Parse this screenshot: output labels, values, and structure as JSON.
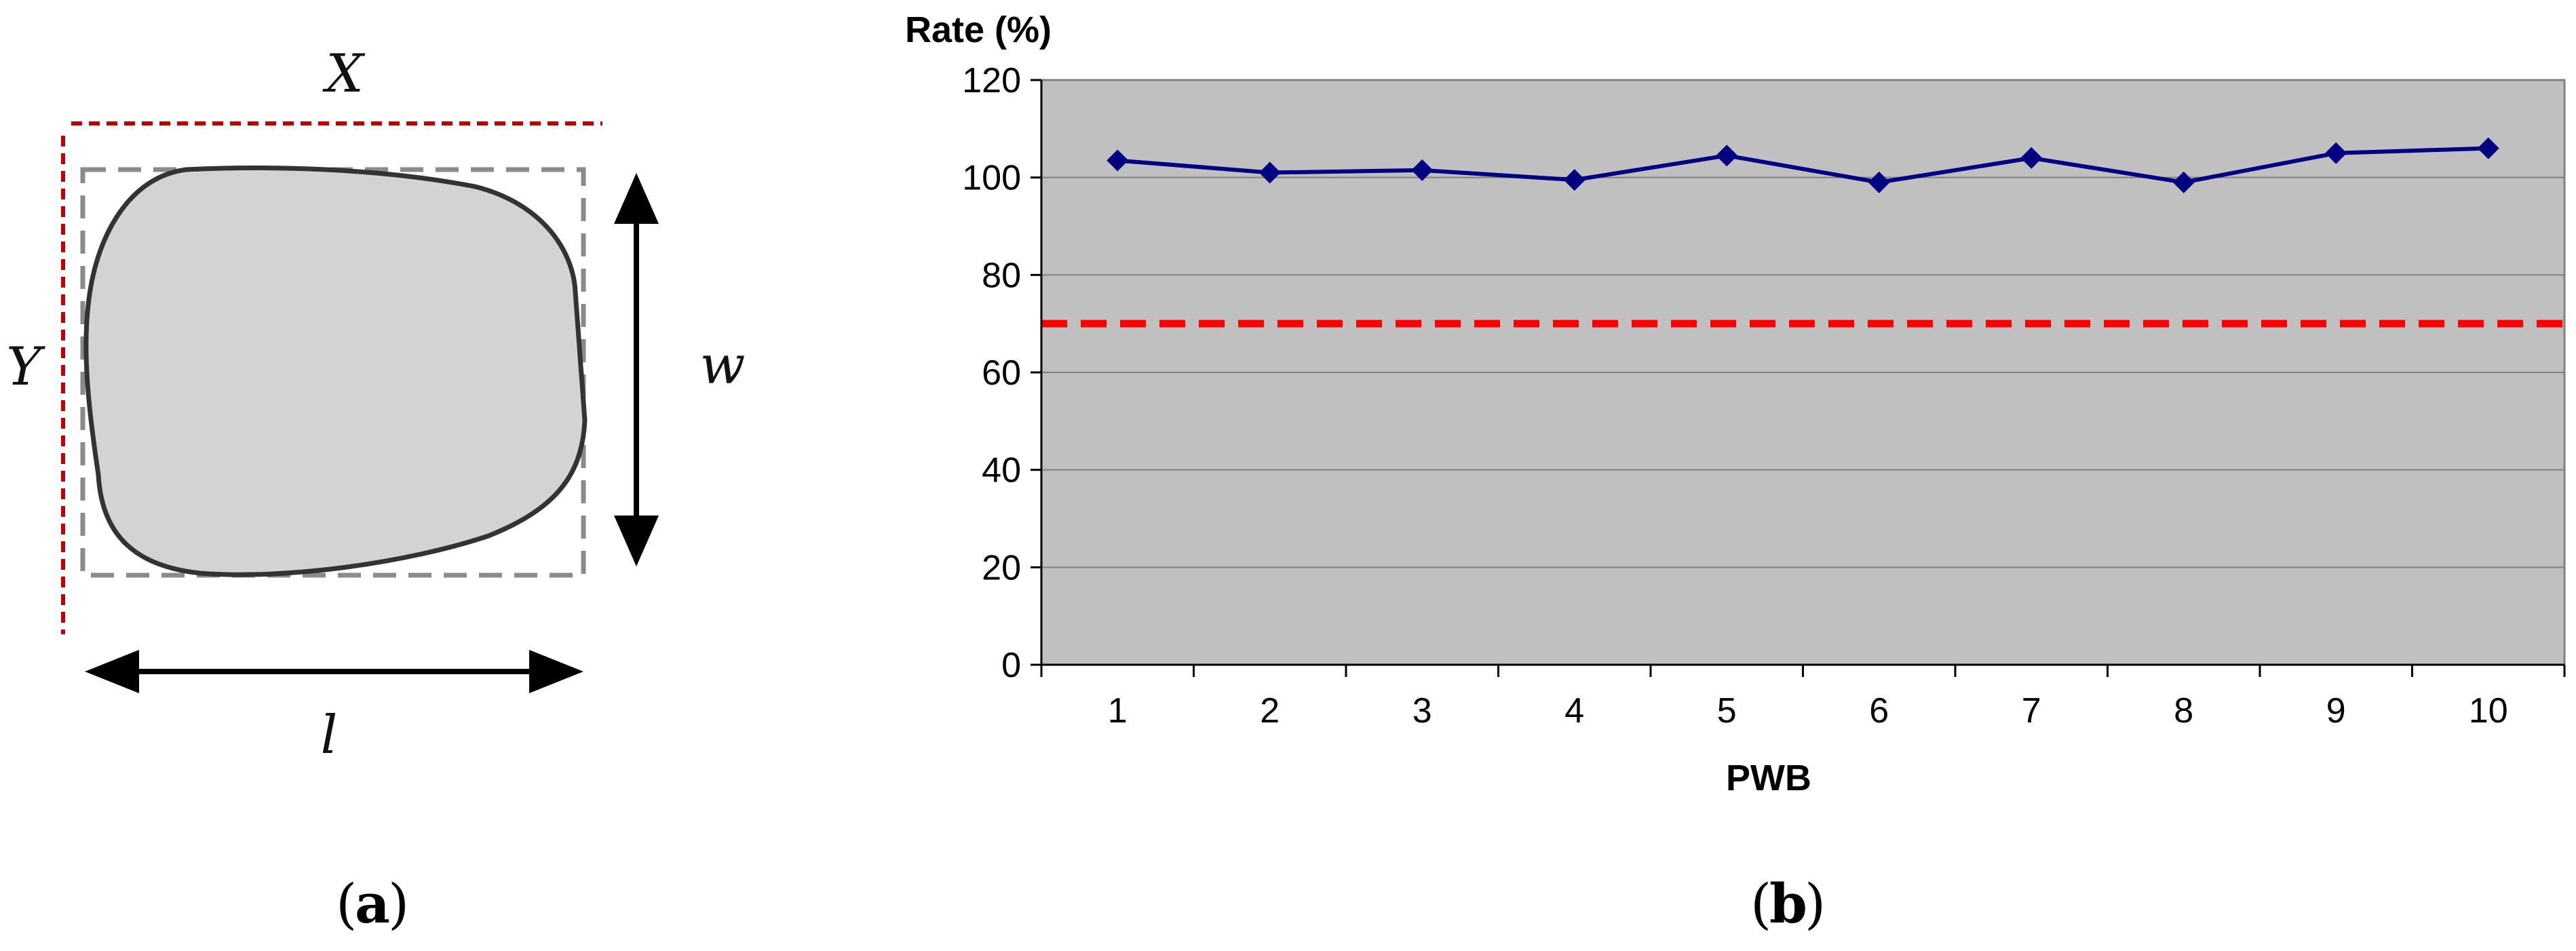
{
  "panel_a": {
    "caption_letter": "a",
    "labels": {
      "X": "X",
      "Y": "Y",
      "w": "w",
      "l": "l"
    }
  },
  "panel_b": {
    "caption_letter": "b"
  },
  "colors": {
    "plot_background": "#c0c0c0",
    "series_line": "#000080",
    "threshold_line": "#ff0000",
    "gridline": "#808080",
    "shape_fill": "#d3d3d3",
    "frame_dashed_red": "#c00000"
  },
  "chart_data": {
    "type": "line",
    "title": "",
    "xlabel": "PWB",
    "ylabel": "Rate (%)",
    "categories": [
      "1",
      "2",
      "3",
      "4",
      "5",
      "6",
      "7",
      "8",
      "9",
      "10"
    ],
    "series": [
      {
        "values": [
          103.5,
          101,
          101.5,
          99.5,
          104.5,
          99,
          104,
          99,
          105,
          106
        ]
      }
    ],
    "threshold": 70,
    "ylim": [
      0,
      120
    ],
    "yticks": [
      0,
      20,
      40,
      60,
      80,
      100,
      120
    ],
    "grid": true,
    "legend": "none"
  }
}
